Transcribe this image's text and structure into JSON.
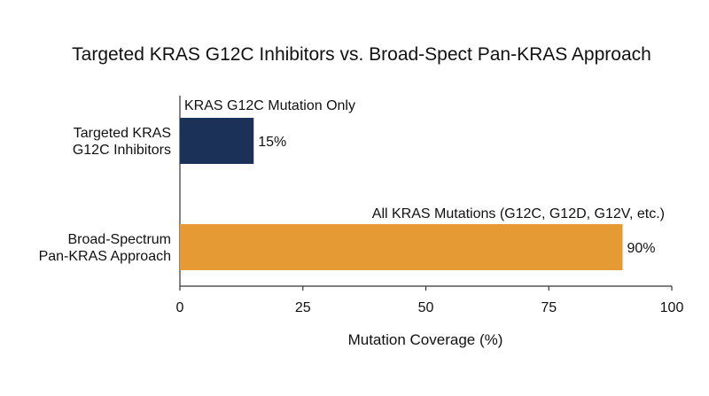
{
  "chart_data": {
    "type": "bar",
    "orientation": "horizontal",
    "title": "Targeted KRAS G12C Inhibitors vs. Broad-Spect Pan-KRAS Approach",
    "xlabel": "Mutation Coverage (%)",
    "ylabel": "",
    "xlim": [
      0,
      100
    ],
    "xticks": [
      "0",
      "25",
      "50",
      "75",
      "100"
    ],
    "grid": false,
    "categories": [
      [
        "Targeted KRAS",
        "G12C Inhibitors"
      ],
      [
        "Broad-Spectrum",
        "Pan-KRAS Approach"
      ]
    ],
    "values": [
      15,
      90
    ],
    "value_labels": [
      "15%",
      "90%"
    ],
    "annotations": [
      "KRAS G12C Mutation Only",
      "All KRAS Mutations (G12C, G12D, G12V, etc.)"
    ],
    "colors": [
      "#1b3158",
      "#e59a33"
    ]
  }
}
